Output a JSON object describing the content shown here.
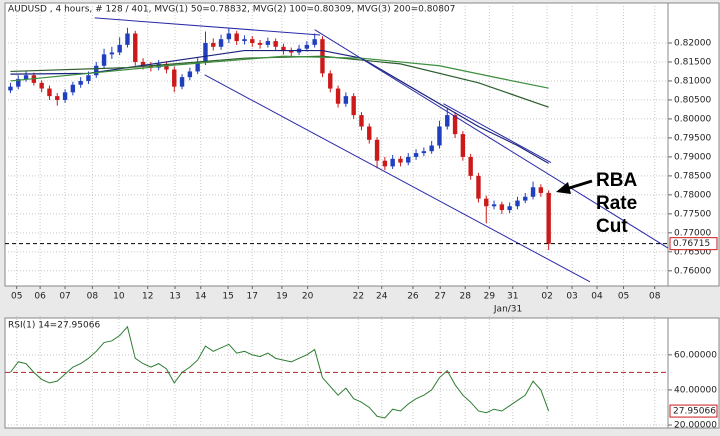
{
  "chart_data": [
    {
      "type": "candlestick",
      "title": "AUDUSD , 4 hours, # 128 / 401, MVG(1) 50=0.78832, MVG(2) 100=0.80309, MVG(3) 200=0.80807",
      "up_color": "#1f3fbf",
      "down_color": "#cc1a1a",
      "open": [
        0.8075,
        0.8085,
        0.8105,
        0.8115,
        0.8095,
        0.808,
        0.806,
        0.805,
        0.807,
        0.809,
        0.81,
        0.8115,
        0.814,
        0.817,
        0.8175,
        0.8195,
        0.8225,
        0.815,
        0.814,
        0.8135,
        0.8145,
        0.813,
        0.8085,
        0.811,
        0.8125,
        0.815,
        0.82,
        0.819,
        0.821,
        0.8225,
        0.8205,
        0.821,
        0.82,
        0.8195,
        0.8205,
        0.819,
        0.818,
        0.8175,
        0.8185,
        0.8195,
        0.821,
        0.812,
        0.808,
        0.804,
        0.806,
        0.801,
        0.798,
        0.7945,
        0.789,
        0.7875,
        0.7895,
        0.7885,
        0.79,
        0.791,
        0.7915,
        0.793,
        0.798,
        0.801,
        0.796,
        0.79,
        0.785,
        0.779,
        0.777,
        0.7775,
        0.776,
        0.777,
        0.7785,
        0.7795,
        0.782,
        0.7805
      ],
      "high": [
        0.8095,
        0.8115,
        0.8125,
        0.8122,
        0.8102,
        0.8088,
        0.8068,
        0.8078,
        0.8098,
        0.811,
        0.8125,
        0.815,
        0.8185,
        0.819,
        0.8215,
        0.824,
        0.8232,
        0.816,
        0.815,
        0.8155,
        0.8152,
        0.8138,
        0.8118,
        0.8135,
        0.816,
        0.823,
        0.8212,
        0.8222,
        0.824,
        0.8232,
        0.822,
        0.8218,
        0.8208,
        0.8214,
        0.8212,
        0.8198,
        0.8188,
        0.8195,
        0.8205,
        0.8225,
        0.8218,
        0.8128,
        0.8088,
        0.807,
        0.8068,
        0.8018,
        0.7988,
        0.7952,
        0.79,
        0.7905,
        0.7902,
        0.791,
        0.792,
        0.7925,
        0.7942,
        0.7995,
        0.803,
        0.8018,
        0.7968,
        0.7908,
        0.7858,
        0.7798,
        0.7785,
        0.7782,
        0.778,
        0.7795,
        0.7805,
        0.7835,
        0.7828,
        0.7812
      ],
      "low": [
        0.8068,
        0.8078,
        0.8098,
        0.8088,
        0.807,
        0.805,
        0.8035,
        0.8042,
        0.8062,
        0.8082,
        0.8092,
        0.8108,
        0.8132,
        0.8158,
        0.8168,
        0.8188,
        0.814,
        0.813,
        0.8125,
        0.8128,
        0.812,
        0.807,
        0.8078,
        0.8102,
        0.8118,
        0.8142,
        0.818,
        0.8182,
        0.82,
        0.8195,
        0.8196,
        0.819,
        0.8185,
        0.8188,
        0.818,
        0.817,
        0.8165,
        0.8168,
        0.8178,
        0.8188,
        0.811,
        0.807,
        0.803,
        0.8032,
        0.8,
        0.797,
        0.7935,
        0.787,
        0.7865,
        0.7868,
        0.7875,
        0.7878,
        0.7892,
        0.7902,
        0.7908,
        0.7922,
        0.7972,
        0.795,
        0.789,
        0.784,
        0.778,
        0.7725,
        0.7762,
        0.775,
        0.7752,
        0.7762,
        0.7778,
        0.7788,
        0.7795,
        0.7655
      ],
      "close": [
        0.8085,
        0.8105,
        0.8115,
        0.8095,
        0.808,
        0.806,
        0.805,
        0.807,
        0.809,
        0.81,
        0.8115,
        0.814,
        0.817,
        0.8175,
        0.8195,
        0.8225,
        0.815,
        0.814,
        0.8135,
        0.8145,
        0.813,
        0.8085,
        0.811,
        0.8125,
        0.815,
        0.82,
        0.819,
        0.821,
        0.8225,
        0.8205,
        0.821,
        0.82,
        0.8195,
        0.8205,
        0.819,
        0.818,
        0.8175,
        0.8185,
        0.8195,
        0.821,
        0.812,
        0.808,
        0.804,
        0.806,
        0.801,
        0.798,
        0.7945,
        0.789,
        0.7875,
        0.7895,
        0.7885,
        0.79,
        0.791,
        0.7915,
        0.793,
        0.798,
        0.801,
        0.796,
        0.79,
        0.785,
        0.779,
        0.777,
        0.7775,
        0.776,
        0.777,
        0.7785,
        0.7795,
        0.782,
        0.7805,
        0.76715
      ],
      "moving_averages": [
        {
          "color": "#1a237e",
          "x": [
            0,
            10,
            20,
            30,
            40,
            45,
            50,
            55,
            60,
            65,
            69
          ],
          "values": [
            0.8118,
            0.812,
            0.815,
            0.818,
            0.818,
            0.816,
            0.81,
            0.804,
            0.798,
            0.793,
            0.7883
          ]
        },
        {
          "color": "#2e5e2e",
          "x": [
            0,
            15,
            30,
            40,
            50,
            60,
            69
          ],
          "values": [
            0.8125,
            0.8135,
            0.816,
            0.8165,
            0.8145,
            0.8095,
            0.8031
          ]
        },
        {
          "color": "#3c8f3c",
          "x": [
            0,
            20,
            35,
            45,
            55,
            62,
            69
          ],
          "values": [
            0.81,
            0.814,
            0.8165,
            0.816,
            0.814,
            0.811,
            0.8081
          ]
        }
      ],
      "trendline_color": "#2a2aa8",
      "trendlines": [
        {
          "x": [
            10.8,
            39.7
          ],
          "values": [
            0.8266,
            0.8221
          ]
        },
        {
          "x": [
            39,
            84.3
          ],
          "values": [
            0.8235,
            0.766
          ]
        },
        {
          "x": [
            55.5,
            69.3
          ],
          "values": [
            0.804,
            0.7885
          ]
        },
        {
          "x": [
            24.9,
            74.3
          ],
          "values": [
            0.8116,
            0.7571
          ]
        }
      ],
      "annotation": [
        "RBA",
        "Rate",
        "Cut"
      ],
      "xlim": [
        -0.7,
        84.3
      ],
      "xticks": [
        {
          "value": 0.8,
          "label": "05"
        },
        {
          "value": 3.8,
          "label": "06"
        },
        {
          "value": 7.0,
          "label": "07"
        },
        {
          "value": 10.5,
          "label": "08"
        },
        {
          "value": 13.9,
          "label": "10"
        },
        {
          "value": 17.6,
          "label": "12"
        },
        {
          "value": 21.1,
          "label": "13"
        },
        {
          "value": 24.4,
          "label": "14"
        },
        {
          "value": 27.9,
          "label": "15"
        },
        {
          "value": 31.0,
          "label": "17"
        },
        {
          "value": 34.8,
          "label": "19"
        },
        {
          "value": 38.1,
          "label": "20"
        },
        {
          "value": 44.6,
          "label": "22"
        },
        {
          "value": 47.6,
          "label": "24"
        },
        {
          "value": 51.6,
          "label": "26"
        },
        {
          "value": 55.1,
          "label": "27"
        },
        {
          "value": 58.3,
          "label": "28"
        },
        {
          "value": 61.4,
          "label": "29"
        },
        {
          "value": 64.4,
          "label": "31"
        },
        {
          "value": 68.8,
          "label": "02"
        },
        {
          "value": 72.0,
          "label": "03"
        },
        {
          "value": 75.2,
          "label": "04"
        },
        {
          "value": 78.6,
          "label": "05"
        },
        {
          "value": 82.6,
          "label": "08"
        }
      ],
      "xtick_note": {
        "value": 63.8,
        "label": "Jan/31"
      },
      "ylim": [
        0.756,
        0.83
      ],
      "yticks": [
        {
          "value": 0.76,
          "label": "0.76000"
        },
        {
          "value": 0.765,
          "label": "0.76500"
        },
        {
          "value": 0.77,
          "label": "0.77000"
        },
        {
          "value": 0.775,
          "label": "0.77500"
        },
        {
          "value": 0.78,
          "label": "0.78000"
        },
        {
          "value": 0.785,
          "label": "0.78500"
        },
        {
          "value": 0.79,
          "label": "0.79000"
        },
        {
          "value": 0.795,
          "label": "0.79500"
        },
        {
          "value": 0.8,
          "label": "0.80000"
        },
        {
          "value": 0.805,
          "label": "0.80500"
        },
        {
          "value": 0.81,
          "label": "0.81000"
        },
        {
          "value": 0.815,
          "label": "0.81500"
        },
        {
          "value": 0.82,
          "label": "0.82000"
        }
      ],
      "grid": true
    },
    {
      "type": "line",
      "title": "RSI(1) 14=27.95066",
      "color": "#2e7d32",
      "values": [
        50,
        56,
        55,
        50,
        46,
        44,
        45,
        49,
        53,
        55,
        58,
        62,
        67,
        68,
        71,
        76,
        58,
        55,
        53,
        55,
        52,
        44,
        50,
        53,
        57,
        65,
        62,
        64,
        66,
        61,
        62,
        60,
        59,
        61,
        58,
        57,
        56,
        58,
        60,
        63,
        47,
        42,
        37,
        41,
        35,
        33,
        30,
        25,
        24,
        29,
        28,
        32,
        35,
        37,
        40,
        47,
        51,
        43,
        37,
        33,
        28,
        27,
        29,
        28,
        31,
        34,
        37,
        45,
        40,
        27.95066
      ],
      "reference_line": 50,
      "reference_color": "#b22222",
      "ylim": [
        18.3,
        81
      ],
      "yticks": [
        {
          "value": 20,
          "label": "20.00000"
        },
        {
          "value": 40,
          "label": "40.00000"
        },
        {
          "value": 60,
          "label": "60.00000"
        }
      ],
      "grid": true
    }
  ]
}
